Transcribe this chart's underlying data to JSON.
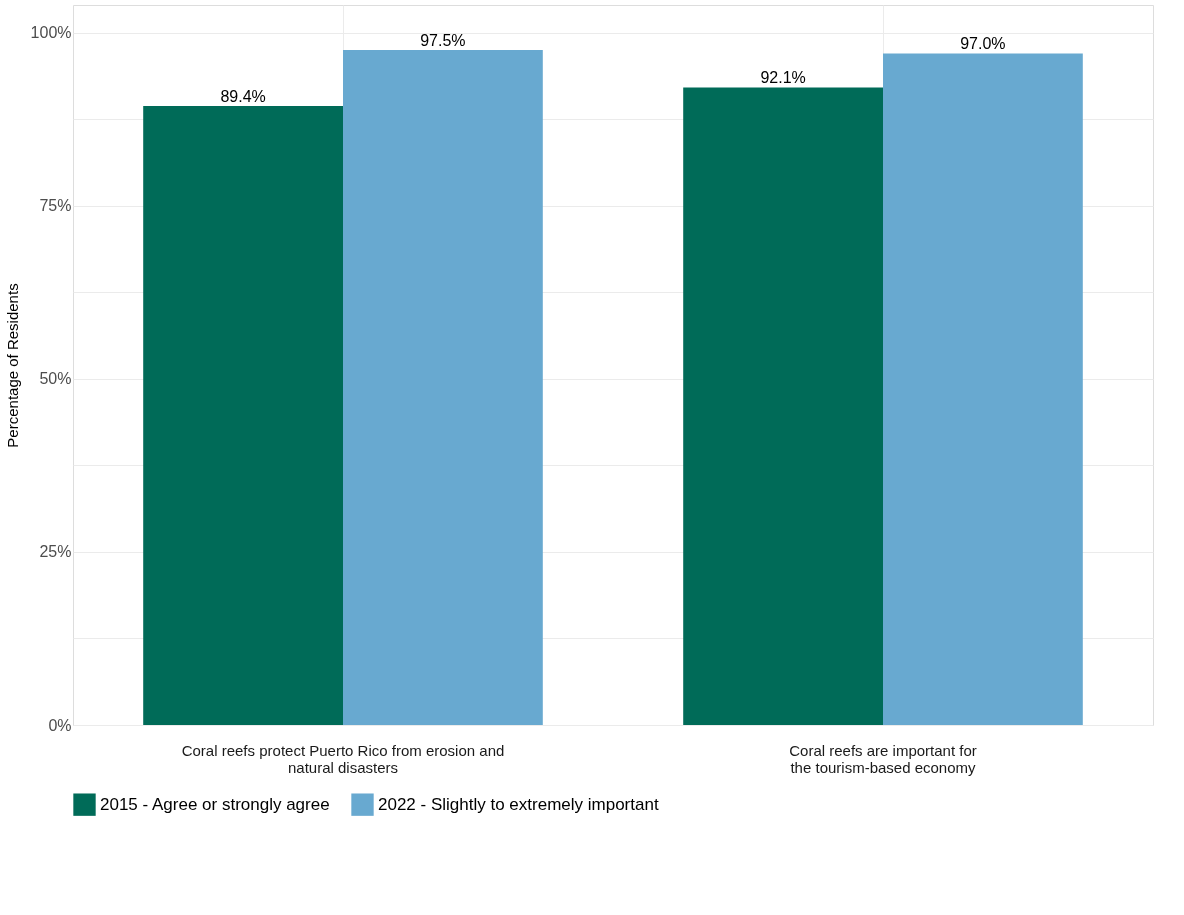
{
  "chart_data": {
    "type": "bar",
    "ylabel": "Percentage of Residents",
    "categories": [
      "Coral reefs protect Puerto Rico from erosion and\nnatural disasters",
      "Coral reefs are important for\nthe tourism-based economy"
    ],
    "series": [
      {
        "name": "2015 - Agree or strongly agree",
        "color": "#006b58",
        "values": [
          89.4,
          92.1
        ],
        "value_labels": [
          "89.4%",
          "92.1%"
        ]
      },
      {
        "name": "2022 - Slightly to extremely important",
        "color": "#68a9d0",
        "values": [
          97.5,
          97.0
        ],
        "value_labels": [
          "97.5%",
          "97.0%"
        ]
      }
    ],
    "ylim": [
      0,
      104
    ],
    "yticks": [
      {
        "value": 0,
        "label": "0%"
      },
      {
        "value": 12.5,
        "label": null
      },
      {
        "value": 25,
        "label": "25%"
      },
      {
        "value": 37.5,
        "label": null
      },
      {
        "value": 50,
        "label": "50%"
      },
      {
        "value": 62.5,
        "label": null
      },
      {
        "value": 75,
        "label": "75%"
      },
      {
        "value": 87.5,
        "label": null
      },
      {
        "value": 100,
        "label": "100%"
      }
    ],
    "grid": true,
    "legend": "bottom"
  }
}
